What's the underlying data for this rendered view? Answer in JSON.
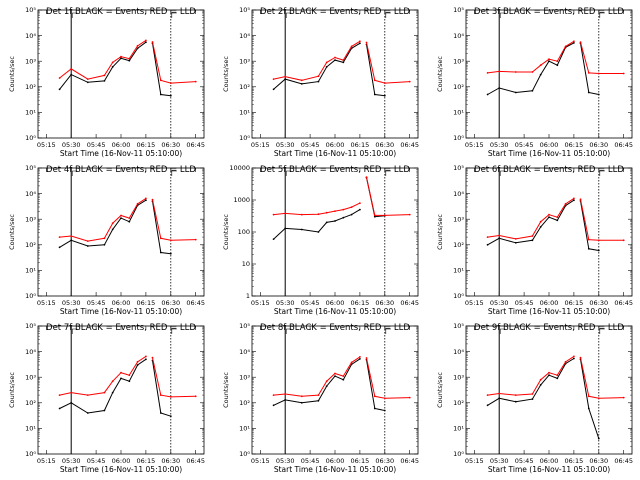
{
  "figure": {
    "x_ticks": [
      "05:15",
      "05:30",
      "05:45",
      "06:00",
      "06:15",
      "06:30",
      "06:45"
    ],
    "x_label": "Start Time (16-Nov-11 05:10:00)",
    "y_label": "Counts/sec",
    "series_colors": {
      "events": "#000000",
      "lld": "#ff0000"
    }
  },
  "chart_data": [
    {
      "type": "line",
      "title": "Det 1f BLACK = Events, RED = LLD",
      "scale": "log",
      "ylim": [
        1,
        100000
      ],
      "y_ticks": [
        "10⁰",
        "10¹",
        "10²",
        "10³",
        "10⁴",
        "10⁵"
      ],
      "x": [
        "05:12",
        "05:23",
        "05:30",
        "05:40",
        "05:50",
        "05:55",
        "06:00",
        "06:05",
        "06:10",
        "06:15",
        "06:16",
        "06:19",
        "06:24",
        "06:30",
        "06:45"
      ],
      "series": [
        {
          "key": "events",
          "values": [
            null,
            80,
            300,
            150,
            170,
            600,
            1300,
            1050,
            3200,
            5500,
            null,
            5000,
            50,
            45,
            null
          ]
        },
        {
          "key": "lld",
          "values": [
            null,
            220,
            500,
            200,
            280,
            900,
            1500,
            1250,
            4000,
            6500,
            null,
            5600,
            180,
            140,
            160
          ]
        }
      ],
      "markers": [
        "05:30",
        "06:30"
      ]
    },
    {
      "type": "line",
      "title": "Det 2f BLACK = Events, RED = LLD",
      "scale": "log",
      "ylim": [
        1,
        100000
      ],
      "y_ticks": [
        "10⁰",
        "10¹",
        "10²",
        "10³",
        "10⁴",
        "10⁵"
      ],
      "x": [
        "05:12",
        "05:23",
        "05:30",
        "05:40",
        "05:50",
        "05:55",
        "06:00",
        "06:05",
        "06:10",
        "06:15",
        "06:16",
        "06:19",
        "06:24",
        "06:30",
        "06:45"
      ],
      "series": [
        {
          "key": "events",
          "values": [
            null,
            80,
            200,
            130,
            160,
            600,
            1100,
            900,
            3200,
            5000,
            null,
            4500,
            50,
            45,
            null
          ]
        },
        {
          "key": "lld",
          "values": [
            null,
            200,
            250,
            180,
            260,
            900,
            1400,
            1100,
            3800,
            6000,
            null,
            5400,
            180,
            140,
            160
          ]
        }
      ],
      "markers": [
        "05:30",
        "06:30"
      ]
    },
    {
      "type": "line",
      "title": "Det 3f BLACK = Events, RED = LLD",
      "scale": "log",
      "ylim": [
        1,
        100000
      ],
      "y_ticks": [
        "10⁰",
        "10¹",
        "10²",
        "10³",
        "10⁴",
        "10⁵"
      ],
      "x": [
        "05:12",
        "05:23",
        "05:30",
        "05:40",
        "05:50",
        "05:55",
        "06:00",
        "06:05",
        "06:10",
        "06:15",
        "06:16",
        "06:19",
        "06:24",
        "06:30",
        "06:45"
      ],
      "series": [
        {
          "key": "events",
          "values": [
            null,
            50,
            90,
            60,
            70,
            300,
            1000,
            700,
            3500,
            5200,
            null,
            5000,
            60,
            50,
            null
          ]
        },
        {
          "key": "lld",
          "values": [
            null,
            350,
            400,
            380,
            380,
            700,
            1200,
            1000,
            3800,
            6000,
            null,
            5500,
            350,
            330,
            330
          ]
        }
      ],
      "markers": [
        "05:30",
        "06:30"
      ]
    },
    {
      "type": "line",
      "title": "Det 4f BLACK = Events, RED = LLD",
      "scale": "log",
      "ylim": [
        1,
        100000
      ],
      "y_ticks": [
        "10⁰",
        "10¹",
        "10²",
        "10³",
        "10⁴",
        "10⁵"
      ],
      "x": [
        "05:12",
        "05:23",
        "05:30",
        "05:40",
        "05:50",
        "05:55",
        "06:00",
        "06:05",
        "06:10",
        "06:15",
        "06:16",
        "06:19",
        "06:24",
        "06:30",
        "06:45"
      ],
      "series": [
        {
          "key": "events",
          "values": [
            null,
            80,
            150,
            90,
            100,
            400,
            1100,
            800,
            3500,
            5500,
            null,
            5000,
            50,
            45,
            null
          ]
        },
        {
          "key": "lld",
          "values": [
            null,
            200,
            220,
            140,
            180,
            700,
            1400,
            1100,
            4000,
            6500,
            null,
            5800,
            180,
            150,
            160
          ]
        }
      ],
      "markers": [
        "05:30",
        "06:30"
      ]
    },
    {
      "type": "line",
      "title": "Det 5f BLACK = Events, RED = LLD",
      "scale": "log",
      "ylim": [
        1,
        10000
      ],
      "y_ticks": [
        "1",
        "10",
        "100",
        "1000",
        "10000"
      ],
      "x": [
        "05:12",
        "05:23",
        "05:30",
        "05:40",
        "05:50",
        "05:55",
        "06:00",
        "06:05",
        "06:10",
        "06:15",
        "06:16",
        "06:19",
        "06:24",
        "06:30",
        "06:45"
      ],
      "series": [
        {
          "key": "events",
          "values": [
            null,
            60,
            130,
            120,
            100,
            200,
            220,
            280,
            350,
            500,
            null,
            5000,
            300,
            320,
            null
          ]
        },
        {
          "key": "lld",
          "values": [
            null,
            350,
            380,
            350,
            360,
            400,
            450,
            500,
            600,
            800,
            null,
            5200,
            330,
            330,
            350
          ]
        }
      ],
      "markers": [
        "05:30",
        "06:30"
      ]
    },
    {
      "type": "line",
      "title": "Det 6f BLACK = Events, RED = LLD",
      "scale": "log",
      "ylim": [
        1,
        100000
      ],
      "y_ticks": [
        "10⁰",
        "10¹",
        "10²",
        "10³",
        "10⁴",
        "10⁵"
      ],
      "x": [
        "05:12",
        "05:23",
        "05:30",
        "05:40",
        "05:50",
        "05:55",
        "06:00",
        "06:05",
        "06:10",
        "06:15",
        "06:16",
        "06:19",
        "06:24",
        "06:30",
        "06:45"
      ],
      "series": [
        {
          "key": "events",
          "values": [
            null,
            100,
            180,
            120,
            150,
            500,
            1200,
            900,
            3400,
            5500,
            null,
            5200,
            70,
            60,
            null
          ]
        },
        {
          "key": "lld",
          "values": [
            null,
            200,
            230,
            170,
            220,
            800,
            1500,
            1200,
            4000,
            6500,
            null,
            6000,
            160,
            150,
            150
          ]
        }
      ],
      "markers": [
        "05:30",
        "06:30"
      ]
    },
    {
      "type": "line",
      "title": "Det 7f BLACK = Events, RED = LLD",
      "scale": "log",
      "ylim": [
        1,
        100000
      ],
      "y_ticks": [
        "10⁰",
        "10¹",
        "10²",
        "10³",
        "10⁴",
        "10⁵"
      ],
      "x": [
        "05:12",
        "05:23",
        "05:30",
        "05:40",
        "05:50",
        "05:55",
        "06:00",
        "06:05",
        "06:10",
        "06:15",
        "06:16",
        "06:19",
        "06:24",
        "06:30",
        "06:45"
      ],
      "series": [
        {
          "key": "events",
          "values": [
            null,
            60,
            100,
            40,
            50,
            250,
            900,
            700,
            3000,
            5000,
            null,
            4500,
            40,
            30,
            null
          ]
        },
        {
          "key": "lld",
          "values": [
            null,
            200,
            250,
            200,
            250,
            700,
            1500,
            1200,
            4000,
            6500,
            null,
            5800,
            200,
            170,
            180
          ]
        }
      ],
      "markers": [
        "05:30",
        "06:30"
      ]
    },
    {
      "type": "line",
      "title": "Det 8f BLACK = Events, RED = LLD",
      "scale": "log",
      "ylim": [
        1,
        100000
      ],
      "y_ticks": [
        "10⁰",
        "10¹",
        "10²",
        "10³",
        "10⁴",
        "10⁵"
      ],
      "x": [
        "05:12",
        "05:23",
        "05:30",
        "05:40",
        "05:50",
        "05:55",
        "06:00",
        "06:05",
        "06:10",
        "06:15",
        "06:16",
        "06:19",
        "06:24",
        "06:30",
        "06:45"
      ],
      "series": [
        {
          "key": "events",
          "values": [
            null,
            80,
            130,
            100,
            120,
            450,
            1100,
            800,
            3200,
            5200,
            null,
            4800,
            60,
            50,
            null
          ]
        },
        {
          "key": "lld",
          "values": [
            null,
            200,
            220,
            180,
            200,
            700,
            1400,
            1100,
            3800,
            6200,
            null,
            5600,
            180,
            150,
            160
          ]
        }
      ],
      "markers": [
        "05:30",
        "06:30"
      ]
    },
    {
      "type": "line",
      "title": "Det 9f BLACK = Events, RED = LLD",
      "scale": "log",
      "ylim": [
        1,
        100000
      ],
      "y_ticks": [
        "10⁰",
        "10¹",
        "10²",
        "10³",
        "10⁴",
        "10⁵"
      ],
      "x": [
        "05:12",
        "05:23",
        "05:30",
        "05:40",
        "05:50",
        "05:55",
        "06:00",
        "06:05",
        "06:10",
        "06:15",
        "06:16",
        "06:19",
        "06:24",
        "06:30",
        "06:45"
      ],
      "series": [
        {
          "key": "events",
          "values": [
            null,
            80,
            150,
            110,
            140,
            500,
            1200,
            900,
            3400,
            5400,
            null,
            5000,
            60,
            4,
            null
          ]
        },
        {
          "key": "lld",
          "values": [
            null,
            200,
            230,
            200,
            220,
            800,
            1500,
            1200,
            4000,
            6500,
            null,
            5800,
            180,
            150,
            160
          ]
        }
      ],
      "markers": [
        "05:30",
        "06:30"
      ]
    }
  ]
}
